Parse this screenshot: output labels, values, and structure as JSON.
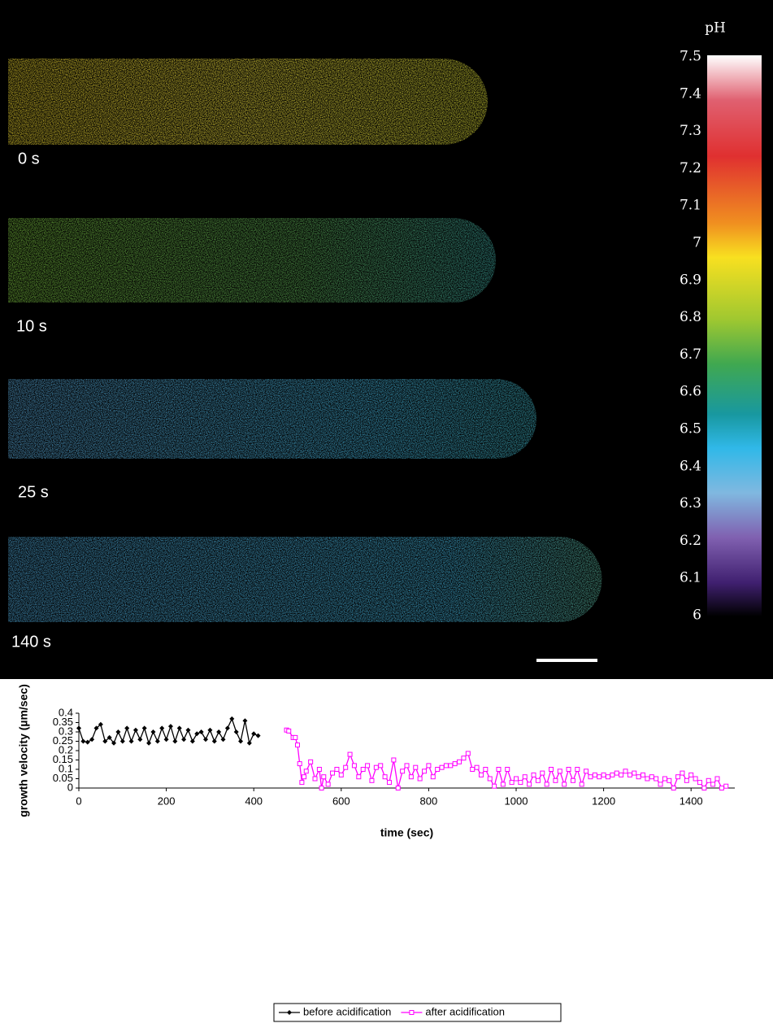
{
  "image_panel": {
    "timepoints": [
      "0 s",
      "10 s",
      "25 s",
      "140 s"
    ],
    "colorbar": {
      "title": "pH",
      "lim": [
        6,
        7.5
      ],
      "ticks": [
        6,
        6.1,
        6.2,
        6.3,
        6.4,
        6.5,
        6.6,
        6.7,
        6.8,
        6.9,
        7,
        7.1,
        7.2,
        7.3,
        7.4,
        7.5
      ]
    }
  },
  "chart_data": {
    "type": "line",
    "ylabel": "growth velocity (µm/sec)",
    "xlabel": "time (sec)",
    "xlim": [
      0,
      1500
    ],
    "xticks": [
      0,
      200,
      400,
      600,
      800,
      1000,
      1200,
      1400
    ],
    "ylim": [
      0,
      0.4
    ],
    "yticks": [
      0,
      0.05,
      0.1,
      0.15,
      0.2,
      0.25,
      0.3,
      0.35,
      0.4
    ],
    "legend": "bottom",
    "series": [
      {
        "name": "before acidification",
        "color": "#000000",
        "marker": "diamond",
        "x": [
          0,
          10,
          20,
          30,
          40,
          50,
          60,
          70,
          80,
          90,
          100,
          110,
          120,
          130,
          140,
          150,
          160,
          170,
          180,
          190,
          200,
          210,
          220,
          230,
          240,
          250,
          260,
          270,
          280,
          290,
          300,
          310,
          320,
          330,
          340,
          350,
          360,
          370,
          380,
          390,
          400,
          410
        ],
        "values": [
          0.32,
          0.25,
          0.245,
          0.26,
          0.32,
          0.34,
          0.25,
          0.27,
          0.24,
          0.3,
          0.25,
          0.32,
          0.25,
          0.31,
          0.26,
          0.32,
          0.24,
          0.3,
          0.25,
          0.32,
          0.26,
          0.33,
          0.25,
          0.32,
          0.26,
          0.31,
          0.25,
          0.29,
          0.3,
          0.26,
          0.31,
          0.25,
          0.3,
          0.26,
          0.32,
          0.37,
          0.3,
          0.25,
          0.36,
          0.24,
          0.29,
          0.28
        ]
      },
      {
        "name": "after acidification",
        "color": "#ff00ff",
        "marker": "square",
        "x": [
          475,
          480,
          490,
          495,
          500,
          505,
          510,
          515,
          520,
          530,
          540,
          550,
          555,
          560,
          570,
          580,
          590,
          600,
          610,
          620,
          630,
          640,
          650,
          660,
          670,
          680,
          690,
          700,
          710,
          720,
          730,
          740,
          750,
          760,
          770,
          780,
          790,
          800,
          810,
          820,
          830,
          840,
          850,
          860,
          870,
          880,
          890,
          900,
          910,
          920,
          930,
          940,
          950,
          960,
          970,
          980,
          990,
          1000,
          1010,
          1020,
          1030,
          1040,
          1050,
          1060,
          1070,
          1080,
          1090,
          1100,
          1110,
          1120,
          1130,
          1140,
          1150,
          1160,
          1170,
          1180,
          1190,
          1200,
          1210,
          1220,
          1230,
          1240,
          1250,
          1260,
          1270,
          1280,
          1290,
          1300,
          1310,
          1320,
          1330,
          1340,
          1350,
          1360,
          1370,
          1380,
          1390,
          1400,
          1410,
          1420,
          1430,
          1440,
          1450,
          1460,
          1470,
          1480
        ],
        "values": [
          0.31,
          0.305,
          0.27,
          0.27,
          0.23,
          0.13,
          0.03,
          0.06,
          0.09,
          0.14,
          0.05,
          0.1,
          0,
          0.06,
          0.02,
          0.08,
          0.1,
          0.07,
          0.11,
          0.18,
          0.12,
          0.06,
          0.1,
          0.12,
          0.04,
          0.11,
          0.12,
          0.06,
          0.03,
          0.15,
          0,
          0.09,
          0.12,
          0.06,
          0.11,
          0.05,
          0.09,
          0.12,
          0.06,
          0.1,
          0.11,
          0.12,
          0.12,
          0.13,
          0.14,
          0.16,
          0.185,
          0.1,
          0.11,
          0.07,
          0.1,
          0.05,
          0.01,
          0.1,
          0.02,
          0.1,
          0.03,
          0.05,
          0.03,
          0.06,
          0.02,
          0.07,
          0.04,
          0.08,
          0.02,
          0.1,
          0.04,
          0.09,
          0.02,
          0.1,
          0.04,
          0.1,
          0.02,
          0.09,
          0.06,
          0.07,
          0.06,
          0.07,
          0.06,
          0.07,
          0.08,
          0.07,
          0.09,
          0.07,
          0.08,
          0.06,
          0.07,
          0.05,
          0.06,
          0.05,
          0.02,
          0.05,
          0.04,
          0,
          0.06,
          0.08,
          0.04,
          0.07,
          0.05,
          0.03,
          0,
          0.04,
          0.02,
          0.05,
          0,
          0.01
        ]
      }
    ]
  }
}
